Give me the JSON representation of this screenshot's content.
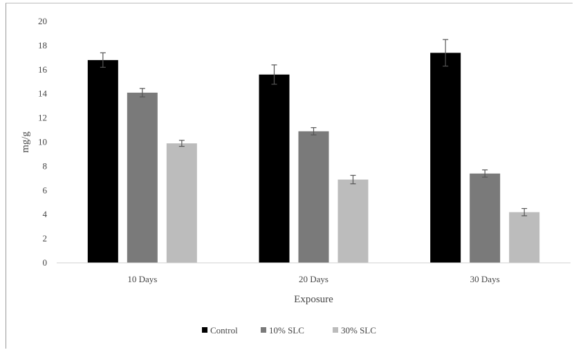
{
  "chart_data": {
    "type": "bar",
    "title": "",
    "xlabel": "Exposure",
    "ylabel": "mg/g",
    "categories": [
      "10 Days",
      "20 Days",
      "30 Days"
    ],
    "ylim": [
      0,
      20
    ],
    "yticks": [
      0,
      2,
      4,
      6,
      8,
      10,
      12,
      14,
      16,
      18,
      20
    ],
    "grid": false,
    "legend_position": "bottom",
    "series": [
      {
        "name": "Control",
        "color": "#000000",
        "values": [
          16.8,
          15.6,
          17.4
        ],
        "errors": [
          0.6,
          0.8,
          1.1
        ]
      },
      {
        "name": "10% SLC",
        "color": "#7a7a7a",
        "values": [
          14.1,
          10.9,
          7.4
        ],
        "errors": [
          0.35,
          0.3,
          0.3
        ]
      },
      {
        "name": "30% SLC",
        "color": "#bcbcbc",
        "values": [
          9.9,
          6.9,
          4.2
        ],
        "errors": [
          0.25,
          0.35,
          0.3
        ]
      }
    ]
  }
}
